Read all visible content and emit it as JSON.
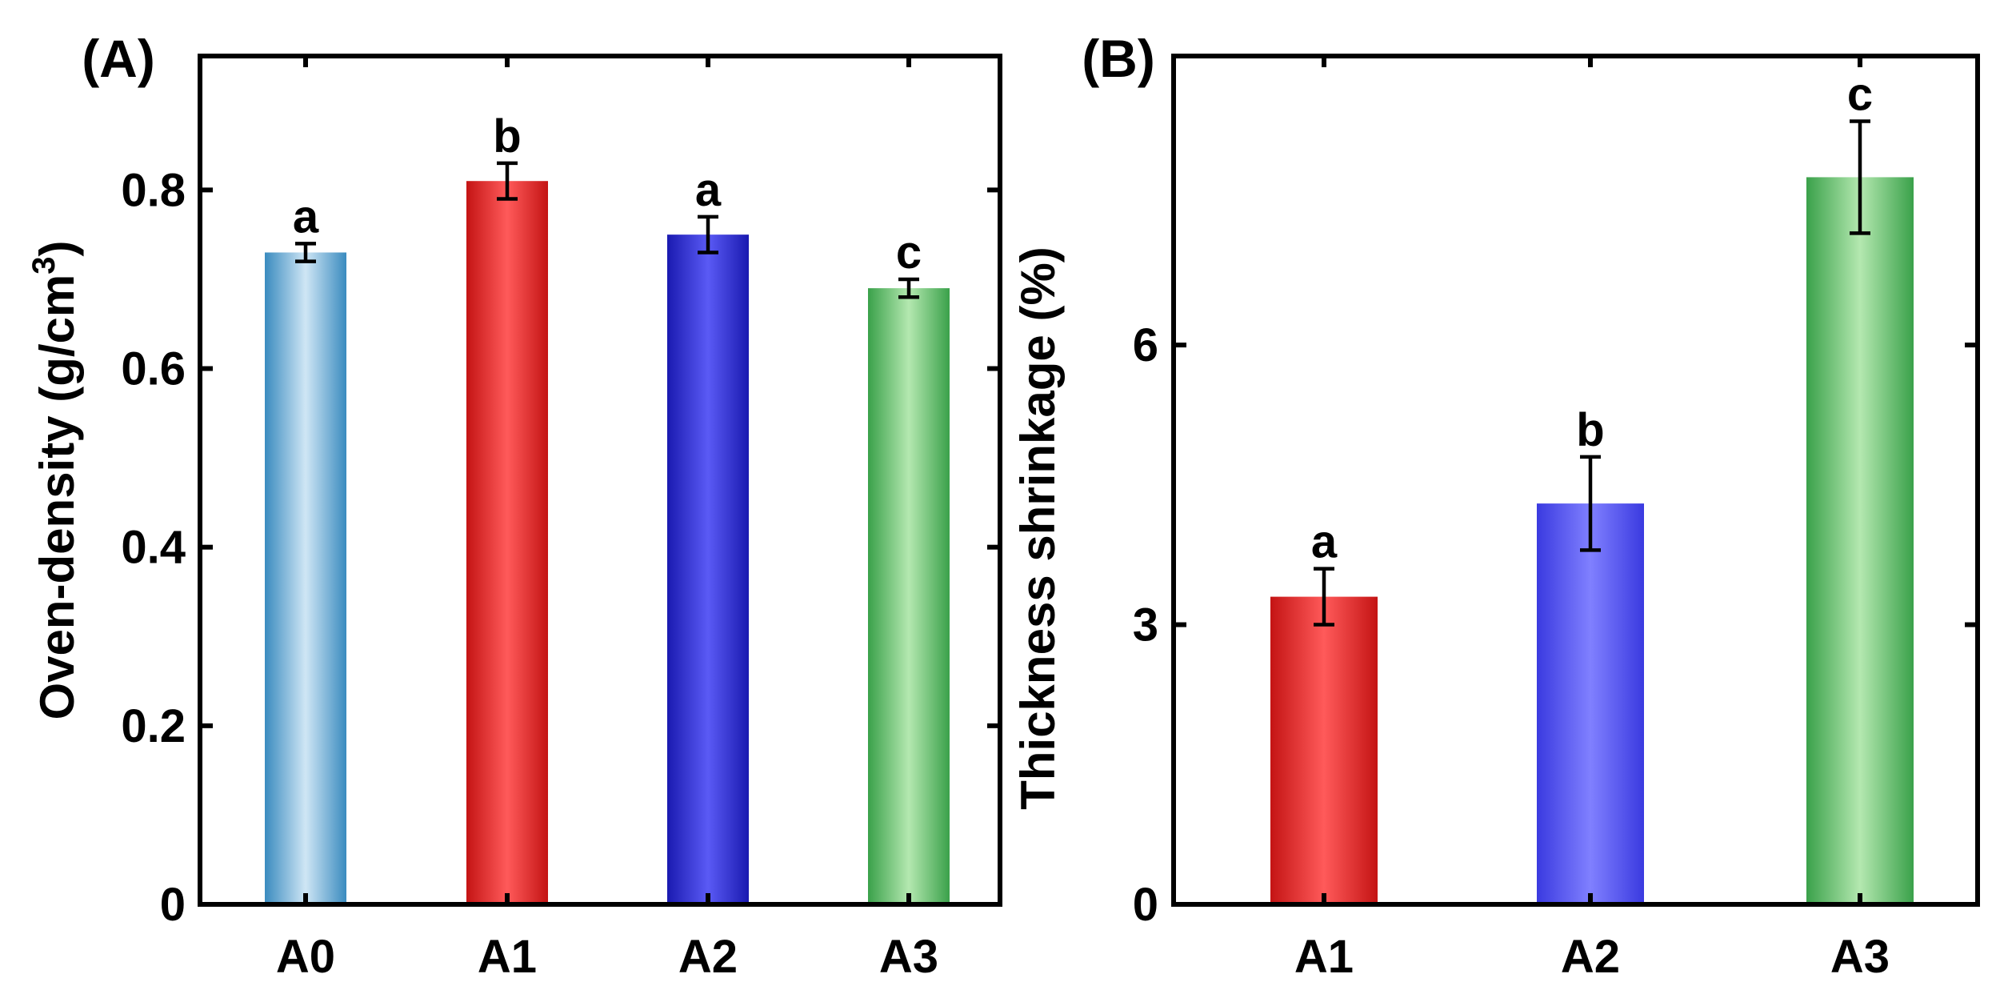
{
  "chart_data": [
    {
      "type": "bar",
      "panel_label": "(A)",
      "title": "",
      "xlabel": "",
      "ylabel_main": "Oven-density (g/cm",
      "ylabel_sup": "3",
      "ylabel_end": ")",
      "categories": [
        "A0",
        "A1",
        "A2",
        "A3"
      ],
      "values": [
        0.73,
        0.81,
        0.75,
        0.69
      ],
      "errors": [
        0.01,
        0.02,
        0.02,
        0.01
      ],
      "significance_letters": [
        "a",
        "b",
        "a",
        "c"
      ],
      "colors": [
        [
          "#3a8bbf",
          "#cfe6f5"
        ],
        [
          "#c41414",
          "#ff5a5a"
        ],
        [
          "#1a1ab0",
          "#5a5af5"
        ],
        [
          "#3aa14a",
          "#b4e8b0"
        ]
      ],
      "ylim": [
        0,
        0.95
      ],
      "yticks": [
        0,
        0.2,
        0.4,
        0.6,
        0.8
      ],
      "ytick_labels": [
        "0",
        "0.2",
        "0.4",
        "0.6",
        "0.8"
      ],
      "grid": false,
      "legend": "none"
    },
    {
      "type": "bar",
      "panel_label": "(B)",
      "title": "",
      "xlabel": "",
      "ylabel": "Thickness shrinkage (%)",
      "categories": [
        "A1",
        "A2",
        "A3"
      ],
      "values": [
        3.3,
        4.3,
        7.8
      ],
      "errors": [
        0.3,
        0.5,
        0.6
      ],
      "significance_letters": [
        "a",
        "b",
        "c"
      ],
      "colors": [
        [
          "#c41414",
          "#ff5a5a"
        ],
        [
          "#3a3ae0",
          "#8080ff"
        ],
        [
          "#3aa14a",
          "#b4e8b0"
        ]
      ],
      "ylim": [
        0,
        9.1
      ],
      "yticks": [
        0,
        3,
        6
      ],
      "ytick_labels": [
        "0",
        "3",
        "6"
      ],
      "grid": false,
      "legend": "none"
    }
  ]
}
